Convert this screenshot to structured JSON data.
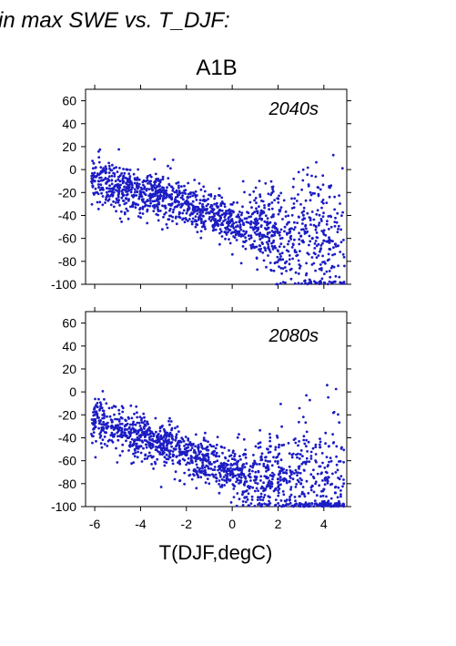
{
  "header_text": "in max SWE vs. T_DJF:",
  "scenario_title": "A1B",
  "colors": {
    "points": "#1c1cc4",
    "axes": "#000000",
    "background": "#ffffff"
  },
  "chart_data": [
    {
      "type": "scatter",
      "title": "2040s",
      "xlabel": "",
      "ylabel": "",
      "xlim": [
        -6.4,
        5.0
      ],
      "ylim": [
        -100,
        70
      ],
      "yticks": [
        60,
        40,
        20,
        0,
        -20,
        -40,
        -60,
        -80,
        -100
      ],
      "xticks": [
        -6,
        -4,
        -2,
        0,
        2,
        4
      ],
      "show_x_tick_labels": false,
      "grid": false,
      "description_of_cloud": [
        {
          "x": -6.0,
          "y": -10
        },
        {
          "x": -5.5,
          "y": -12
        },
        {
          "x": -5.0,
          "y": -15
        },
        {
          "x": -4.5,
          "y": -18
        },
        {
          "x": -4.0,
          "y": -20
        },
        {
          "x": -3.5,
          "y": -22
        },
        {
          "x": -3.0,
          "y": -25
        },
        {
          "x": -2.5,
          "y": -28
        },
        {
          "x": -2.0,
          "y": -30
        },
        {
          "x": -1.5,
          "y": -35
        },
        {
          "x": -1.0,
          "y": -38
        },
        {
          "x": -0.5,
          "y": -42
        },
        {
          "x": 0.0,
          "y": -45
        },
        {
          "x": 0.5,
          "y": -48
        },
        {
          "x": 1.0,
          "y": -50
        },
        {
          "x": 1.5,
          "y": -52
        },
        {
          "x": 2.0,
          "y": -55
        },
        {
          "x": 2.5,
          "y": -55
        },
        {
          "x": 3.0,
          "y": -58
        },
        {
          "x": 3.5,
          "y": -60
        },
        {
          "x": 4.0,
          "y": -62
        },
        {
          "x": 4.5,
          "y": -65
        }
      ]
    },
    {
      "type": "scatter",
      "title": "2080s",
      "xlabel": "T(DJF,degC)",
      "ylabel": "",
      "xlim": [
        -6.4,
        5.0
      ],
      "ylim": [
        -100,
        70
      ],
      "yticks": [
        60,
        40,
        20,
        0,
        -20,
        -40,
        -60,
        -80,
        -100
      ],
      "xticks": [
        -6,
        -4,
        -2,
        0,
        2,
        4
      ],
      "show_x_tick_labels": true,
      "grid": false,
      "description_of_cloud": [
        {
          "x": -6.0,
          "y": -25
        },
        {
          "x": -5.5,
          "y": -28
        },
        {
          "x": -5.0,
          "y": -32
        },
        {
          "x": -4.5,
          "y": -35
        },
        {
          "x": -4.0,
          "y": -38
        },
        {
          "x": -3.5,
          "y": -42
        },
        {
          "x": -3.0,
          "y": -45
        },
        {
          "x": -2.5,
          "y": -50
        },
        {
          "x": -2.0,
          "y": -55
        },
        {
          "x": -1.5,
          "y": -58
        },
        {
          "x": -1.0,
          "y": -62
        },
        {
          "x": -0.5,
          "y": -65
        },
        {
          "x": 0.0,
          "y": -70
        },
        {
          "x": 0.5,
          "y": -72
        },
        {
          "x": 1.0,
          "y": -74
        },
        {
          "x": 1.5,
          "y": -75
        },
        {
          "x": 2.0,
          "y": -76
        },
        {
          "x": 2.5,
          "y": -78
        },
        {
          "x": 3.0,
          "y": -80
        },
        {
          "x": 3.5,
          "y": -82
        },
        {
          "x": 4.0,
          "y": -85
        },
        {
          "x": 4.5,
          "y": -88
        }
      ]
    }
  ]
}
